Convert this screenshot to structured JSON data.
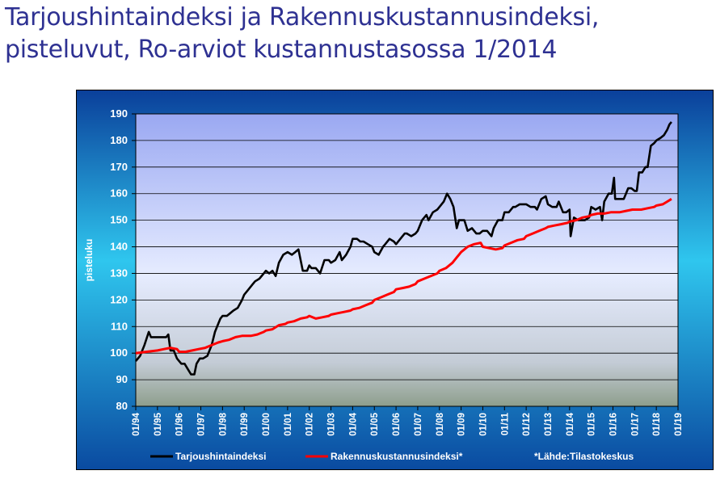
{
  "title_lines": [
    "Tarjoushintaindeksi ja Rakennuskustannusindeksi,",
    "pisteluvut, Ro-arviot kustannustasossa 1/2014"
  ],
  "chart_data": {
    "type": "line",
    "title": "Tarjoushintaindeksi ja Rakennuskustannusindeksi, pisteluvut, Ro-arviot kustannustasossa 1/2014",
    "ylabel": "pisteluku",
    "xlabel": "",
    "ylim": [
      80,
      190
    ],
    "yticks": [
      80,
      90,
      100,
      110,
      120,
      130,
      140,
      150,
      160,
      170,
      180,
      190
    ],
    "xlim": [
      1994,
      2019
    ],
    "xticks": [
      "01/94",
      "01/95",
      "01/96",
      "01/97",
      "01/98",
      "01/99",
      "01/00",
      "01/01",
      "01/02",
      "01/03",
      "01/04",
      "01/05",
      "01/06",
      "01/07",
      "01/08",
      "01/09",
      "01/10",
      "01/11",
      "01/12",
      "01/13",
      "01/14",
      "01/15",
      "01/16",
      "01/17",
      "01/18",
      "01/19"
    ],
    "grid": "horizontal",
    "legend_position": "bottom",
    "source_note": "*Lähde:Tilastokeskus",
    "colors": {
      "background_top": "#1a6fd6",
      "background_bottom": "#0a4a9e",
      "plot_top": "#d0d8ff",
      "plot_bottom": "#9aa89a"
    },
    "series": [
      {
        "name": "Tarjoushintaindeksi",
        "color": "#000000",
        "x": [
          1994.0,
          1994.2,
          1994.4,
          1994.6,
          1994.7,
          1994.85,
          1995.0,
          1995.2,
          1995.4,
          1995.5,
          1995.6,
          1995.75,
          1995.9,
          1996.0,
          1996.1,
          1996.25,
          1996.4,
          1996.55,
          1996.7,
          1996.8,
          1996.95,
          1997.1,
          1997.3,
          1997.5,
          1997.65,
          1997.8,
          1997.9,
          1998.0,
          1998.2,
          1998.35,
          1998.5,
          1998.7,
          1998.9,
          1999.0,
          1999.2,
          1999.4,
          1999.5,
          1999.7,
          1999.9,
          2000.0,
          2000.15,
          2000.3,
          2000.45,
          2000.6,
          2000.8,
          2001.0,
          2001.2,
          2001.35,
          2001.5,
          2001.7,
          2001.9,
          2002.0,
          2002.1,
          2002.3,
          2002.5,
          2002.7,
          2002.9,
          2003.0,
          2003.2,
          2003.4,
          2003.5,
          2003.7,
          2003.9,
          2004.0,
          2004.2,
          2004.35,
          2004.5,
          2004.7,
          2004.9,
          2005.0,
          2005.2,
          2005.4,
          2005.5,
          2005.7,
          2005.9,
          2006.0,
          2006.2,
          2006.4,
          2006.5,
          2006.7,
          2006.9,
          2007.0,
          2007.2,
          2007.4,
          2007.5,
          2007.7,
          2007.9,
          2008.0,
          2008.2,
          2008.35,
          2008.5,
          2008.65,
          2008.8,
          2008.9,
          2009.0,
          2009.15,
          2009.3,
          2009.5,
          2009.7,
          2009.85,
          2010.0,
          2010.2,
          2010.4,
          2010.5,
          2010.7,
          2010.9,
          2011.0,
          2011.2,
          2011.4,
          2011.5,
          2011.7,
          2011.9,
          2012.0,
          2012.2,
          2012.4,
          2012.5,
          2012.7,
          2012.9,
          2013.0,
          2013.2,
          2013.4,
          2013.5,
          2013.7,
          2013.85,
          2014.0,
          2014.05,
          2014.2,
          2014.4,
          2014.5,
          2014.7,
          2014.9,
          2015.0,
          2015.2,
          2015.4,
          2015.5,
          2015.6,
          2015.8,
          2015.95,
          2016.05,
          2016.1,
          2016.3,
          2016.5,
          2016.6,
          2016.7,
          2016.85,
          2017.0,
          2017.1,
          2017.2,
          2017.35,
          2017.5,
          2017.6,
          2017.75,
          2017.9,
          2018.0,
          2018.2,
          2018.35,
          2018.5,
          2018.6,
          2018.7
        ],
        "values": [
          97,
          99,
          103,
          108,
          106,
          106,
          106,
          106,
          106,
          107,
          101,
          101,
          98,
          97,
          96,
          96,
          94,
          92,
          92,
          96,
          98,
          98,
          99,
          103,
          108,
          111,
          113,
          114,
          114,
          115,
          116,
          117,
          120,
          122,
          124,
          126,
          127,
          128,
          130,
          131,
          130,
          131,
          129,
          134,
          137,
          138,
          137,
          138,
          139,
          131,
          131,
          133,
          132,
          132,
          130,
          135,
          135,
          134,
          135,
          138,
          135,
          137,
          140,
          143,
          143,
          142,
          142,
          141,
          140,
          138,
          137,
          140,
          141,
          143,
          142,
          141,
          143,
          145,
          145,
          144,
          145,
          146,
          150,
          152,
          150,
          153,
          154,
          155,
          157,
          160,
          158,
          155,
          147,
          150,
          150,
          150,
          146,
          147,
          145,
          145,
          146,
          146,
          144,
          147,
          150,
          150,
          153,
          153,
          155,
          155,
          156,
          156,
          156,
          155,
          155,
          154,
          158,
          159,
          156,
          155,
          155,
          157,
          153,
          153,
          154,
          144,
          151,
          150,
          150,
          150,
          151,
          155,
          154,
          155,
          150,
          157,
          160,
          160,
          166,
          158,
          158,
          158,
          160,
          162,
          162,
          161,
          161,
          168,
          168,
          170,
          170,
          178,
          179,
          180,
          181,
          182,
          184,
          186,
          187
        ]
      },
      {
        "name": "Rakennuskustannusindeksi*",
        "color": "#ff0000",
        "x": [
          1994.0,
          1994.5,
          1995.0,
          1995.3,
          1995.6,
          1995.9,
          1996.0,
          1996.3,
          1996.6,
          1996.9,
          1997.2,
          1997.5,
          1997.8,
          1998.0,
          1998.3,
          1998.6,
          1998.9,
          1999.0,
          1999.3,
          1999.6,
          1999.9,
          2000.0,
          2000.3,
          2000.6,
          2000.9,
          2001.0,
          2001.3,
          2001.6,
          2001.9,
          2002.0,
          2002.3,
          2002.6,
          2002.9,
          2003.0,
          2003.3,
          2003.6,
          2003.9,
          2004.0,
          2004.3,
          2004.6,
          2004.9,
          2005.0,
          2005.3,
          2005.6,
          2005.9,
          2006.0,
          2006.3,
          2006.6,
          2006.9,
          2007.0,
          2007.3,
          2007.6,
          2007.9,
          2008.0,
          2008.3,
          2008.6,
          2008.8,
          2008.9,
          2009.0,
          2009.3,
          2009.6,
          2009.9,
          2010.0,
          2010.3,
          2010.6,
          2010.9,
          2011.0,
          2011.3,
          2011.6,
          2011.9,
          2012.0,
          2012.3,
          2012.6,
          2012.9,
          2013.0,
          2013.3,
          2013.6,
          2013.9,
          2014.0,
          2014.3,
          2014.6,
          2014.9,
          2015.0,
          2015.3,
          2015.6,
          2015.9,
          2016.0,
          2016.3,
          2016.6,
          2016.9,
          2017.0,
          2017.3,
          2017.6,
          2017.9,
          2018.0,
          2018.3,
          2018.5,
          2018.7
        ],
        "values": [
          100,
          100.5,
          101,
          101.5,
          102,
          101.5,
          100.5,
          100.5,
          101,
          101.5,
          102,
          103,
          104,
          104.5,
          105,
          106,
          106.5,
          106.5,
          106.5,
          107,
          108,
          108.5,
          109,
          110.5,
          111,
          111.5,
          112,
          113,
          113.5,
          114,
          113,
          113.5,
          114,
          114.5,
          115,
          115.5,
          116,
          116.5,
          117,
          118,
          119,
          120,
          121,
          122,
          123,
          124,
          124.5,
          125,
          126,
          127,
          128,
          129,
          130,
          131,
          132,
          134,
          136,
          137,
          138,
          140,
          141,
          141.5,
          140,
          139.5,
          139,
          139.5,
          140.5,
          141.5,
          142.5,
          143,
          144,
          145,
          146,
          147,
          147.5,
          148,
          148.5,
          149,
          149.5,
          150,
          151,
          151.5,
          152,
          152.5,
          152.5,
          153,
          153,
          153,
          153.5,
          154,
          154,
          154,
          154.5,
          155,
          155.5,
          156,
          157,
          158
        ]
      }
    ]
  }
}
